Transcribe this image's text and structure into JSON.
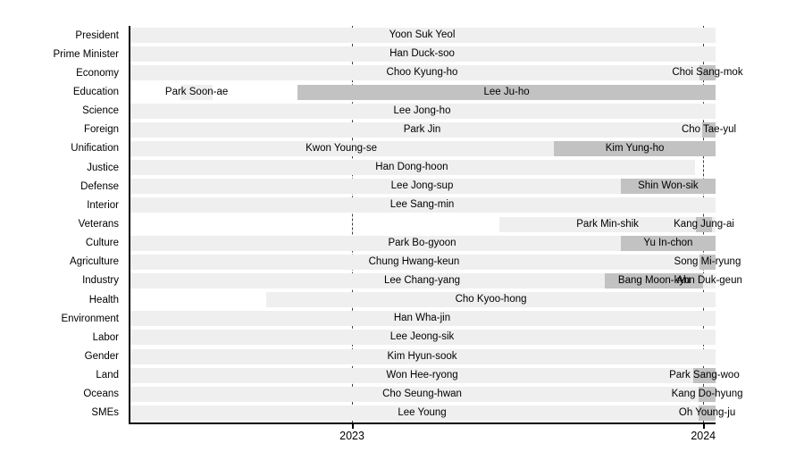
{
  "chart_data": {
    "type": "bar",
    "subtype": "gantt-timeline",
    "title": "",
    "xlabel": "",
    "ylabel": "",
    "xlim": [
      2022.364,
      2024.035
    ],
    "x_ticks": [
      {
        "value": 2023,
        "label": "2023"
      },
      {
        "value": 2024,
        "label": "2024"
      }
    ],
    "grid": "dashed-vertical-at-ticks",
    "legend": "none",
    "categories": [
      "President",
      "Prime Minister",
      "Economy",
      "Education",
      "Science",
      "Foreign",
      "Unification",
      "Justice",
      "Defense",
      "Interior",
      "Veterans",
      "Culture",
      "Agriculture",
      "Industry",
      "Health",
      "Environment",
      "Labor",
      "Gender",
      "Land",
      "Oceans",
      "SMEs"
    ],
    "rows": [
      {
        "category": "President",
        "spans": [
          {
            "name": "Yoon Suk Yeol",
            "start": 2022.364,
            "end": 2024.035,
            "shade": "light"
          }
        ]
      },
      {
        "category": "Prime Minister",
        "spans": [
          {
            "name": "Han Duck-soo",
            "start": 2022.364,
            "end": 2024.035,
            "shade": "light"
          }
        ]
      },
      {
        "category": "Economy",
        "spans": [
          {
            "name": "Choo Kyung-ho",
            "start": 2022.364,
            "end": 2024.035,
            "shade": "light"
          },
          {
            "name": "Choi Sang-mok",
            "start": 2023.989,
            "end": 2024.035,
            "shade": "dark"
          }
        ]
      },
      {
        "category": "Education",
        "spans": [
          {
            "name": "Park Soon-ae",
            "start": 2022.512,
            "end": 2022.603,
            "shade": "light"
          },
          {
            "name": "Lee Ju-ho",
            "start": 2022.845,
            "end": 2024.035,
            "shade": "dark"
          }
        ]
      },
      {
        "category": "Science",
        "spans": [
          {
            "name": "Lee Jong-ho",
            "start": 2022.364,
            "end": 2024.035,
            "shade": "light"
          }
        ]
      },
      {
        "category": "Foreign",
        "spans": [
          {
            "name": "Park Jin",
            "start": 2022.364,
            "end": 2024.035,
            "shade": "light"
          },
          {
            "name": "Cho Tae-yul",
            "start": 2023.997,
            "end": 2024.035,
            "shade": "dark"
          }
        ]
      },
      {
        "category": "Unification",
        "spans": [
          {
            "name": "Kwon Young-se",
            "start": 2022.364,
            "end": 2023.575,
            "shade": "light"
          },
          {
            "name": "Kim Yung-ho",
            "start": 2023.575,
            "end": 2024.035,
            "shade": "dark"
          }
        ]
      },
      {
        "category": "Justice",
        "spans": [
          {
            "name": "Han Dong-hoon",
            "start": 2022.364,
            "end": 2023.976,
            "shade": "light"
          }
        ]
      },
      {
        "category": "Defense",
        "spans": [
          {
            "name": "Lee Jong-sup",
            "start": 2022.364,
            "end": 2024.035,
            "shade": "light"
          },
          {
            "name": "Shin Won-sik",
            "start": 2023.765,
            "end": 2024.035,
            "shade": "dark"
          }
        ]
      },
      {
        "category": "Interior",
        "spans": [
          {
            "name": "Lee Sang-min",
            "start": 2022.364,
            "end": 2024.035,
            "shade": "light"
          }
        ]
      },
      {
        "category": "Veterans",
        "spans": [
          {
            "name": "Park Min-shik",
            "start": 2023.42,
            "end": 2024.035,
            "shade": "light"
          },
          {
            "name": "Kang Jung-ai",
            "start": 2023.979,
            "end": 2024.025,
            "shade": "dark"
          }
        ]
      },
      {
        "category": "Culture",
        "spans": [
          {
            "name": "Park Bo-gyoon",
            "start": 2022.364,
            "end": 2024.035,
            "shade": "light"
          },
          {
            "name": "Yu In-chon",
            "start": 2023.765,
            "end": 2024.035,
            "shade": "dark"
          }
        ]
      },
      {
        "category": "Agriculture",
        "spans": [
          {
            "name": "Chung Hwang-keun",
            "start": 2022.364,
            "end": 2023.989,
            "shade": "light"
          },
          {
            "name": "Song Mi-ryung",
            "start": 2023.989,
            "end": 2024.035,
            "shade": "dark"
          }
        ]
      },
      {
        "category": "Industry",
        "spans": [
          {
            "name": "Lee Chang-yang",
            "start": 2022.364,
            "end": 2024.035,
            "shade": "light"
          },
          {
            "name": "Bang Moon-kyu",
            "start": 2023.72,
            "end": 2024.0,
            "shade": "dark"
          },
          {
            "name": "Ahn Duk-geun",
            "start": 2024.0,
            "end": 2024.035,
            "shade": "light"
          }
        ]
      },
      {
        "category": "Health",
        "spans": [
          {
            "name": "Cho Kyoo-hong",
            "start": 2022.756,
            "end": 2024.035,
            "shade": "light"
          }
        ]
      },
      {
        "category": "Environment",
        "spans": [
          {
            "name": "Han Wha-jin",
            "start": 2022.364,
            "end": 2024.035,
            "shade": "light"
          }
        ]
      },
      {
        "category": "Labor",
        "spans": [
          {
            "name": "Lee Jeong-sik",
            "start": 2022.364,
            "end": 2024.035,
            "shade": "light"
          }
        ]
      },
      {
        "category": "Gender",
        "spans": [
          {
            "name": "Kim Hyun-sook",
            "start": 2022.364,
            "end": 2024.035,
            "shade": "light"
          }
        ]
      },
      {
        "category": "Land",
        "spans": [
          {
            "name": "Won Hee-ryong",
            "start": 2022.364,
            "end": 2024.035,
            "shade": "light"
          },
          {
            "name": "Park Sang-woo",
            "start": 2023.971,
            "end": 2024.035,
            "shade": "dark"
          }
        ]
      },
      {
        "category": "Oceans",
        "spans": [
          {
            "name": "Cho Seung-hwan",
            "start": 2022.364,
            "end": 2024.035,
            "shade": "light"
          },
          {
            "name": "Kang Do-hyung",
            "start": 2023.987,
            "end": 2024.035,
            "shade": "dark"
          }
        ]
      },
      {
        "category": "SMEs",
        "spans": [
          {
            "name": "Lee Young",
            "start": 2022.364,
            "end": 2024.035,
            "shade": "light"
          },
          {
            "name": "Oh Young-ju",
            "start": 2023.987,
            "end": 2024.035,
            "shade": "dark"
          }
        ]
      }
    ]
  },
  "colors": {
    "background": "#ffffff",
    "bar_light": "#efefef",
    "bar_dark": "#c2c2c2",
    "gridline": "#3c3c3c",
    "axis": "#000000",
    "text": "#000000"
  }
}
